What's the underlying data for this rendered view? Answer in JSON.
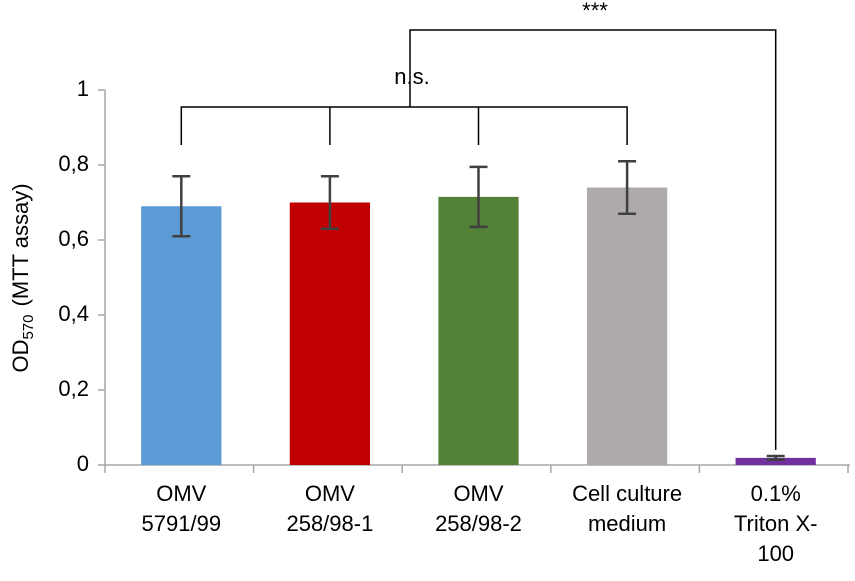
{
  "chart_data": {
    "type": "bar",
    "y_label": {
      "main": "OD",
      "subscript": "570",
      "suffix": "(MTT assay)"
    },
    "categories": [
      [
        "OMV",
        "5791/99"
      ],
      [
        "OMV",
        "258/98-1"
      ],
      [
        "OMV",
        "258/98-2"
      ],
      [
        "Cell culture",
        "medium"
      ],
      [
        "0.1%",
        "Triton X-",
        "100"
      ]
    ],
    "values": [
      0.69,
      0.7,
      0.715,
      0.74,
      0.019
    ],
    "errors": [
      0.08,
      0.07,
      0.08,
      0.07,
      0.005
    ],
    "colors": [
      "#5b9bd5",
      "#c00000",
      "#538135",
      "#aeaaaa",
      "#7030a0"
    ],
    "error_color": "#404040",
    "ylim": [
      0,
      1
    ],
    "yticks": [
      0,
      {
        "value": 0.2,
        "label": "0,2"
      },
      {
        "value": 0.4,
        "label": "0,4"
      },
      {
        "value": 0.6,
        "label": "0,6"
      },
      {
        "value": 0.8,
        "label": "0,8"
      },
      1
    ],
    "annotations": [
      {
        "text": "n.s."
      },
      {
        "text": "***"
      }
    ]
  }
}
